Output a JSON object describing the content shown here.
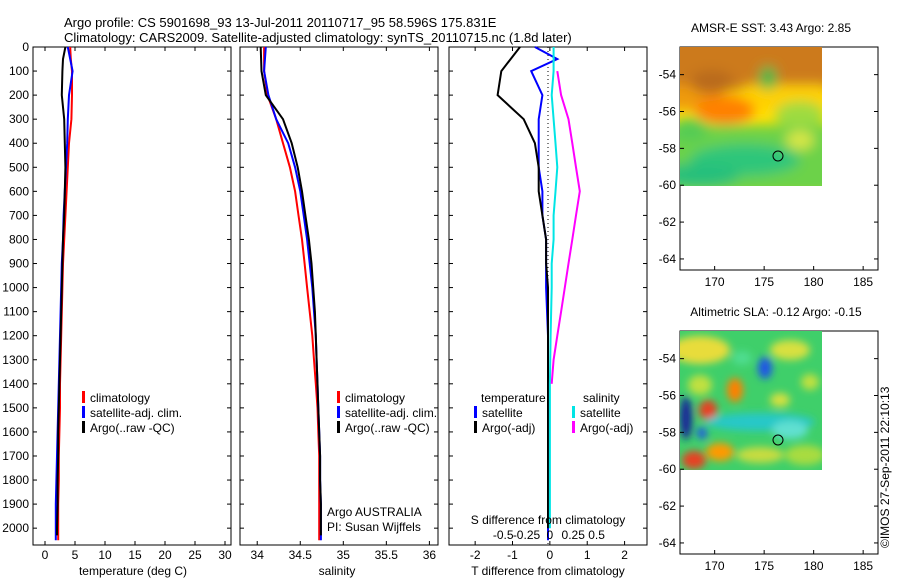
{
  "header": {
    "line1": "Argo profile: CS 5901698_93 13-Jul-2011 20110717_95 58.596S 175.831E",
    "line2": "Climatology: CARS2009. Satellite-adjusted climatology: synTS_20110715.nc (1.8d later)"
  },
  "credit": "©IMOS 27-Sep-2011 22:10:13",
  "colors": {
    "climatology": "#ff0000",
    "satellite": "#0000ff",
    "argo": "#000000",
    "sal_satellite": "#00e5e5",
    "sal_argo": "#ff00ff"
  },
  "chart_data": [
    {
      "type": "line",
      "panel": "temperature",
      "xlabel": "temperature (deg C)",
      "ylabel": "",
      "xlim": [
        -2,
        31
      ],
      "ylim": [
        2070,
        0
      ],
      "xticks": [
        0,
        5,
        10,
        15,
        20,
        25,
        30
      ],
      "yticks": [
        0,
        100,
        200,
        300,
        400,
        500,
        600,
        700,
        800,
        900,
        1000,
        1100,
        1200,
        1300,
        1400,
        1500,
        1600,
        1700,
        1800,
        1900,
        2000
      ],
      "legend": [
        "climatology",
        "satellite-adj. clim.",
        "Argo(..raw -QC)"
      ],
      "series": [
        {
          "name": "climatology",
          "color": "#ff0000",
          "points": [
            [
              4.2,
              0
            ],
            [
              4.3,
              50
            ],
            [
              4.5,
              100
            ],
            [
              4.5,
              200
            ],
            [
              4.4,
              300
            ],
            [
              4.0,
              400
            ],
            [
              3.8,
              500
            ],
            [
              3.6,
              600
            ],
            [
              3.4,
              700
            ],
            [
              3.2,
              800
            ],
            [
              3.0,
              900
            ],
            [
              2.9,
              1000
            ],
            [
              2.8,
              1100
            ],
            [
              2.7,
              1200
            ],
            [
              2.6,
              1300
            ],
            [
              2.5,
              1400
            ],
            [
              2.5,
              1500
            ],
            [
              2.4,
              1600
            ],
            [
              2.3,
              1700
            ],
            [
              2.3,
              1800
            ],
            [
              2.2,
              1900
            ],
            [
              2.2,
              2000
            ],
            [
              2.2,
              2050
            ]
          ]
        },
        {
          "name": "satellite-adj. clim.",
          "color": "#0000ff",
          "points": [
            [
              3.8,
              0
            ],
            [
              4.2,
              50
            ],
            [
              4.6,
              100
            ],
            [
              4.0,
              200
            ],
            [
              3.8,
              300
            ],
            [
              3.7,
              400
            ],
            [
              3.5,
              500
            ],
            [
              3.3,
              600
            ],
            [
              3.1,
              700
            ],
            [
              3.0,
              800
            ],
            [
              2.8,
              900
            ],
            [
              2.7,
              1000
            ],
            [
              2.6,
              1100
            ],
            [
              2.5,
              1200
            ],
            [
              2.4,
              1300
            ],
            [
              2.3,
              1400
            ],
            [
              2.2,
              1500
            ],
            [
              2.1,
              1600
            ],
            [
              2.0,
              1700
            ],
            [
              1.9,
              1800
            ],
            [
              1.8,
              1900
            ],
            [
              1.8,
              2000
            ],
            [
              1.8,
              2050
            ]
          ]
        },
        {
          "name": "Argo(..raw -QC)",
          "color": "#000000",
          "points": [
            [
              3.4,
              0
            ],
            [
              3.0,
              50
            ],
            [
              2.9,
              100
            ],
            [
              2.8,
              200
            ],
            [
              3.2,
              300
            ],
            [
              3.3,
              400
            ],
            [
              3.4,
              500
            ],
            [
              3.3,
              600
            ],
            [
              3.2,
              700
            ],
            [
              3.0,
              800
            ],
            [
              2.9,
              900
            ],
            [
              2.8,
              1000
            ],
            [
              2.7,
              1100
            ],
            [
              2.6,
              1200
            ],
            [
              2.5,
              1300
            ],
            [
              2.4,
              1400
            ],
            [
              2.3,
              1500
            ],
            [
              2.2,
              1600
            ],
            [
              2.2,
              1700
            ],
            [
              2.1,
              1800
            ],
            [
              2.1,
              1900
            ],
            [
              2.0,
              2000
            ],
            [
              2.0,
              2030
            ]
          ]
        }
      ]
    },
    {
      "type": "line",
      "panel": "salinity",
      "xlabel": "salinity",
      "ylabel": "",
      "xlim": [
        33.8,
        36.1
      ],
      "ylim": [
        2070,
        0
      ],
      "xticks": [
        34,
        34.5,
        35,
        35.5,
        36
      ],
      "xtick_labels": [
        "34",
        "34.5",
        "35",
        "35.5",
        "36"
      ],
      "legend": [
        "climatology",
        "satellite-adj. clim.",
        "Argo(..raw -QC)"
      ],
      "annotations": [
        "Argo AUSTRALIA",
        "PI: Susan Wijffels"
      ],
      "series": [
        {
          "name": "climatology",
          "color": "#ff0000",
          "points": [
            [
              34.08,
              0
            ],
            [
              34.08,
              100
            ],
            [
              34.12,
              200
            ],
            [
              34.22,
              300
            ],
            [
              34.3,
              400
            ],
            [
              34.38,
              500
            ],
            [
              34.44,
              600
            ],
            [
              34.48,
              700
            ],
            [
              34.52,
              800
            ],
            [
              34.55,
              900
            ],
            [
              34.58,
              1000
            ],
            [
              34.61,
              1100
            ],
            [
              34.64,
              1200
            ],
            [
              34.66,
              1300
            ],
            [
              34.68,
              1400
            ],
            [
              34.7,
              1500
            ],
            [
              34.71,
              1600
            ],
            [
              34.72,
              1700
            ],
            [
              34.72,
              1800
            ],
            [
              34.72,
              1900
            ],
            [
              34.72,
              2000
            ],
            [
              34.72,
              2050
            ]
          ]
        },
        {
          "name": "satellite-adj. clim.",
          "color": "#0000ff",
          "points": [
            [
              34.1,
              0
            ],
            [
              34.08,
              100
            ],
            [
              34.13,
              200
            ],
            [
              34.22,
              300
            ],
            [
              34.36,
              400
            ],
            [
              34.44,
              500
            ],
            [
              34.5,
              600
            ],
            [
              34.54,
              700
            ],
            [
              34.58,
              800
            ],
            [
              34.61,
              900
            ],
            [
              34.64,
              1000
            ],
            [
              34.66,
              1100
            ],
            [
              34.68,
              1200
            ],
            [
              34.69,
              1300
            ],
            [
              34.7,
              1400
            ],
            [
              34.71,
              1500
            ],
            [
              34.72,
              1600
            ],
            [
              34.73,
              1700
            ],
            [
              34.73,
              1800
            ],
            [
              34.74,
              1900
            ],
            [
              34.74,
              2000
            ],
            [
              34.74,
              2050
            ]
          ]
        },
        {
          "name": "Argo(..raw -QC)",
          "color": "#000000",
          "points": [
            [
              34.04,
              0
            ],
            [
              34.05,
              100
            ],
            [
              34.1,
              200
            ],
            [
              34.3,
              300
            ],
            [
              34.4,
              400
            ],
            [
              34.47,
              500
            ],
            [
              34.52,
              600
            ],
            [
              34.56,
              700
            ],
            [
              34.6,
              800
            ],
            [
              34.63,
              900
            ],
            [
              34.65,
              1000
            ],
            [
              34.67,
              1100
            ],
            [
              34.68,
              1200
            ],
            [
              34.69,
              1300
            ],
            [
              34.7,
              1400
            ],
            [
              34.71,
              1500
            ],
            [
              34.72,
              1600
            ],
            [
              34.73,
              1700
            ],
            [
              34.73,
              1800
            ],
            [
              34.74,
              1900
            ],
            [
              34.74,
              2000
            ],
            [
              34.74,
              2030
            ]
          ]
        }
      ]
    },
    {
      "type": "line",
      "panel": "difference",
      "xlabel": "T difference from climatology",
      "xlabel2": "S difference from climatology",
      "xlim": [
        -2.7,
        2.6
      ],
      "ylim": [
        2070,
        0
      ],
      "xticks": [
        -2,
        -1,
        0,
        1,
        2
      ],
      "xtick_labels": [
        "-2",
        "-1",
        "0",
        "1",
        "2"
      ],
      "xticks2": [
        -1.25,
        -0.625,
        0,
        0.625,
        1.25
      ],
      "xtick2_labels": [
        "-0.5",
        "-0.25",
        "0",
        "0.25",
        "0.5"
      ],
      "legend_temperature": {
        "title": "temperature",
        "items": [
          "satellite",
          "Argo(-adj)"
        ]
      },
      "legend_salinity": {
        "title": "salinity",
        "items": [
          "satellite",
          "Argo(-adj)"
        ]
      },
      "series": [
        {
          "name": "temperature satellite",
          "color": "#0000ff",
          "points": [
            [
              -0.4,
              0
            ],
            [
              0.2,
              50
            ],
            [
              -0.5,
              100
            ],
            [
              -0.2,
              200
            ],
            [
              -0.3,
              300
            ],
            [
              -0.3,
              400
            ],
            [
              -0.3,
              500
            ],
            [
              -0.2,
              600
            ],
            [
              -0.2,
              700
            ],
            [
              -0.1,
              800
            ],
            [
              -0.1,
              900
            ],
            [
              -0.1,
              1000
            ],
            [
              -0.05,
              1200
            ],
            [
              -0.05,
              1400
            ],
            [
              -0.05,
              1600
            ],
            [
              -0.05,
              1800
            ],
            [
              -0.05,
              2000
            ],
            [
              -0.05,
              2050
            ]
          ]
        },
        {
          "name": "temperature Argo(-adj)",
          "color": "#000000",
          "points": [
            [
              -0.8,
              0
            ],
            [
              -1.3,
              100
            ],
            [
              -1.4,
              200
            ],
            [
              -0.7,
              300
            ],
            [
              -0.4,
              400
            ],
            [
              -0.3,
              500
            ],
            [
              -0.3,
              600
            ],
            [
              -0.2,
              700
            ],
            [
              -0.1,
              800
            ],
            [
              -0.1,
              900
            ],
            [
              -0.05,
              1000
            ],
            [
              -0.05,
              1200
            ],
            [
              -0.05,
              1400
            ],
            [
              -0.05,
              1600
            ],
            [
              -0.05,
              1800
            ],
            [
              -0.05,
              2000
            ]
          ]
        },
        {
          "name": "salinity satellite",
          "color": "#00e5e5",
          "points": [
            [
              0.1,
              0
            ],
            [
              0.1,
              100
            ],
            [
              0.05,
              200
            ],
            [
              0.1,
              300
            ],
            [
              0.15,
              400
            ],
            [
              0.2,
              500
            ],
            [
              0.15,
              600
            ],
            [
              0.1,
              700
            ],
            [
              0.1,
              800
            ],
            [
              0.05,
              900
            ],
            [
              0.05,
              1000
            ],
            [
              0.02,
              1200
            ],
            [
              0.0,
              1400
            ],
            [
              0.0,
              1600
            ],
            [
              0.0,
              1800
            ],
            [
              0.0,
              2000
            ]
          ]
        },
        {
          "name": "salinity Argo(-adj)",
          "color": "#ff00ff",
          "points": [
            [
              0.2,
              100
            ],
            [
              0.3,
              200
            ],
            [
              0.5,
              300
            ],
            [
              0.6,
              400
            ],
            [
              0.7,
              500
            ],
            [
              0.8,
              600
            ],
            [
              0.7,
              700
            ],
            [
              0.6,
              800
            ],
            [
              0.5,
              900
            ],
            [
              0.4,
              1000
            ],
            [
              0.3,
              1100
            ],
            [
              0.2,
              1200
            ],
            [
              0.1,
              1300
            ],
            [
              0.05,
              1400
            ]
          ]
        }
      ]
    },
    {
      "type": "heatmap",
      "panel": "sst_map",
      "title": "AMSR-E SST: 3.43 Argo: 2.85",
      "xlim": [
        166.5,
        186.5
      ],
      "ylim": [
        -64.6,
        -52.5
      ],
      "data_extent_x": [
        166.5,
        180
      ],
      "data_extent_y": [
        -60,
        -52.5
      ],
      "xticks": [
        170,
        175,
        180,
        185
      ],
      "yticks": [
        -54,
        -56,
        -58,
        -60,
        -62,
        -64
      ],
      "argo_position": {
        "lon": 175.831,
        "lat": -58.596
      }
    },
    {
      "type": "heatmap",
      "panel": "sla_map",
      "title": "Altimetric SLA: -0.12 Argo: -0.15",
      "xlim": [
        166.5,
        186.5
      ],
      "ylim": [
        -64.6,
        -52.5
      ],
      "data_extent_x": [
        166.5,
        180
      ],
      "data_extent_y": [
        -60,
        -52.5
      ],
      "xticks": [
        170,
        175,
        180,
        185
      ],
      "yticks": [
        -54,
        -56,
        -58,
        -60,
        -62,
        -64
      ],
      "argo_position": {
        "lon": 175.831,
        "lat": -58.596
      }
    }
  ]
}
